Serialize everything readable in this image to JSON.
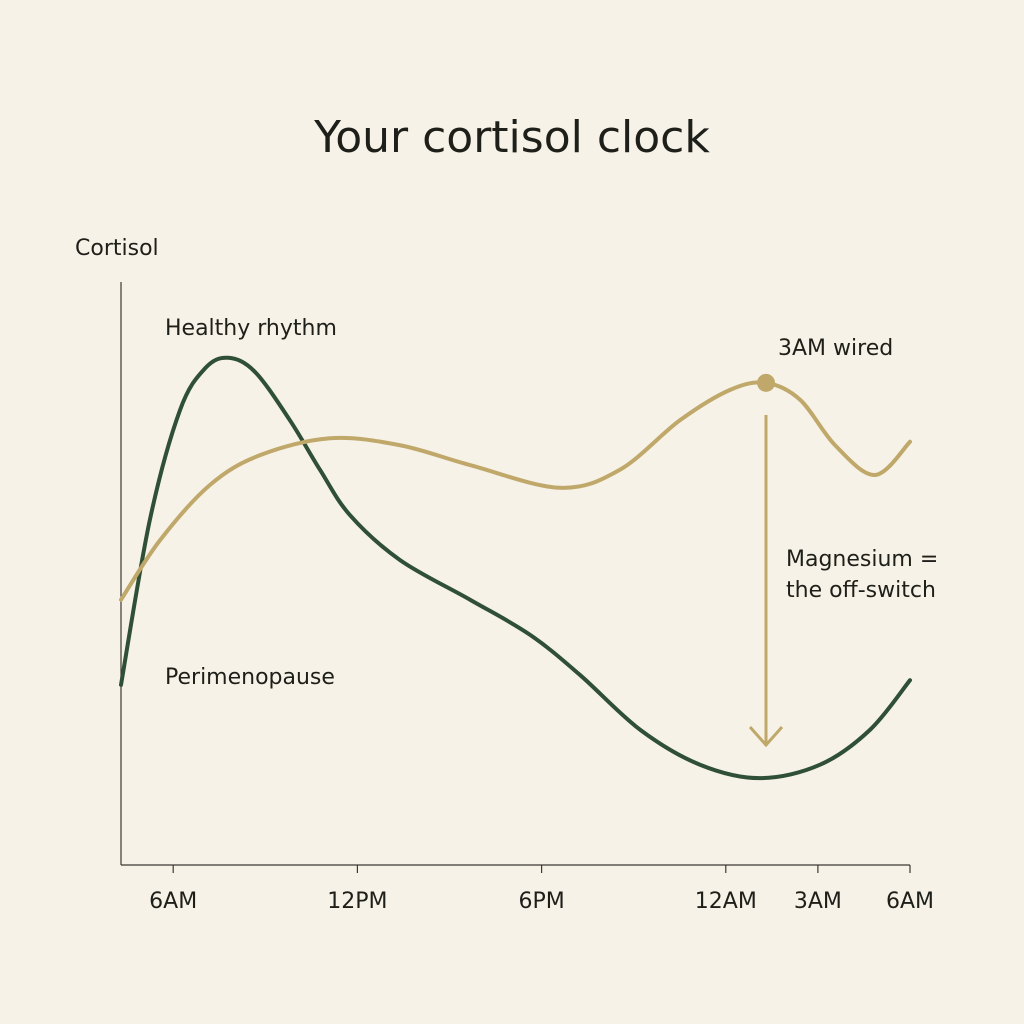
{
  "chart_data": {
    "type": "line",
    "title": "Your cortisol clock",
    "y_label": "Cortisol",
    "xlim": [
      4.3,
      30
    ],
    "ylim": [
      0,
      100
    ],
    "xticks": [
      {
        "value": 6,
        "label": "6AM"
      },
      {
        "value": 12,
        "label": "12PM"
      },
      {
        "value": 18,
        "label": "6PM"
      },
      {
        "value": 24,
        "label": "12AM"
      },
      {
        "value": 27,
        "label": "3AM"
      },
      {
        "value": 30,
        "label": "6AM"
      }
    ],
    "series": [
      {
        "name": "Healthy rhythm",
        "color": "#2f4f36",
        "x": [
          4.3,
          5.24,
          6.22,
          7.04,
          7.79,
          8.66,
          9.8,
          10.78,
          11.76,
          13.39,
          15.67,
          17.62,
          19.25,
          21.21,
          23.16,
          25.11,
          27.07,
          28.7,
          30
        ],
        "values": [
          30.9,
          59.2,
          78.0,
          85.2,
          87.0,
          84.6,
          76.3,
          67.8,
          60.0,
          52.3,
          45.5,
          39.5,
          32.6,
          23.2,
          17.2,
          14.9,
          17.2,
          23.2,
          31.7
        ]
      },
      {
        "name": "Perimenopause",
        "color": "#bfa86a",
        "x": [
          4.3,
          5.57,
          7.2,
          8.83,
          11.11,
          13.39,
          15.67,
          18.6,
          20.55,
          22.51,
          24.14,
          25.31,
          26.42,
          27.56,
          28.86,
          30
        ],
        "values": [
          45.5,
          55.7,
          65.2,
          70.3,
          73.2,
          72.0,
          68.6,
          64.7,
          67.8,
          76.3,
          81.5,
          82.7,
          79.8,
          72.0,
          66.9,
          72.6
        ]
      }
    ],
    "annotations": [
      "3AM wired",
      "Magnesium =",
      "the off-switch"
    ]
  }
}
